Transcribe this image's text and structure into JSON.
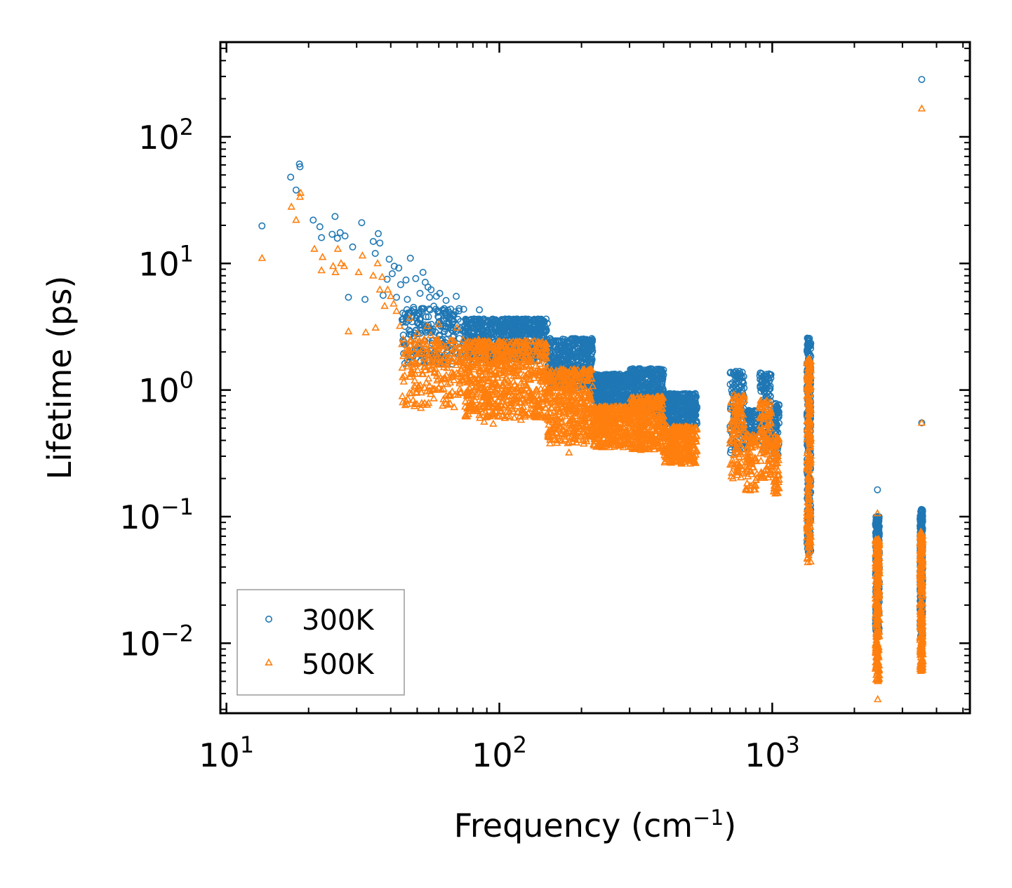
{
  "chart_data": {
    "type": "scatter",
    "title": "",
    "xlabel": {
      "base": "Frequency (cm",
      "sup": "−1",
      "tail": ")"
    },
    "ylabel": "Lifetime (ps)",
    "xscale": "log",
    "yscale": "log",
    "xlim": [
      9.5,
      5300
    ],
    "ylim": [
      0.0028,
      560
    ],
    "legend_position": "lower-left",
    "x_ticks": [
      {
        "value": 10,
        "base": "10",
        "exp": "1"
      },
      {
        "value": 100,
        "base": "10",
        "exp": "2"
      },
      {
        "value": 1000,
        "base": "10",
        "exp": "3"
      }
    ],
    "y_ticks": [
      {
        "value": 0.01,
        "base": "10",
        "exp": "−2"
      },
      {
        "value": 0.1,
        "base": "10",
        "exp": "−1"
      },
      {
        "value": 1,
        "base": "10",
        "exp": "0"
      },
      {
        "value": 10,
        "base": "10",
        "exp": "1"
      },
      {
        "value": 100,
        "base": "10",
        "exp": "2"
      }
    ],
    "series": [
      {
        "name": "300K",
        "marker": "circle",
        "color": "#1f77b4",
        "points": [
          [
            13.5,
            19.8
          ],
          [
            17.2,
            48
          ],
          [
            18.0,
            38
          ],
          [
            18.5,
            61
          ],
          [
            18.6,
            58
          ],
          [
            20.8,
            22
          ],
          [
            22.0,
            19.5
          ],
          [
            22.3,
            16
          ],
          [
            24.4,
            17
          ],
          [
            25.0,
            23.5
          ],
          [
            25.5,
            15.8
          ],
          [
            26.1,
            17.5
          ],
          [
            27.2,
            16.5
          ],
          [
            28.0,
            5.4
          ],
          [
            29.0,
            13.5
          ],
          [
            31.3,
            21
          ],
          [
            32.2,
            5.2
          ],
          [
            34.5,
            14.9
          ],
          [
            35.1,
            12
          ],
          [
            36.0,
            17.2
          ],
          [
            36.5,
            14.5
          ],
          [
            37.5,
            5.6
          ],
          [
            38.8,
            7.5
          ],
          [
            39.5,
            10.8
          ],
          [
            40.5,
            8.3
          ],
          [
            41.2,
            9.5
          ],
          [
            42.0,
            5.4
          ],
          [
            42.8,
            9.2
          ],
          [
            43.5,
            6.8
          ],
          [
            44.0,
            3.6
          ],
          [
            44.8,
            2.3
          ],
          [
            45.5,
            7.4
          ],
          [
            46.0,
            5.2
          ],
          [
            47.2,
            11
          ],
          [
            48.0,
            3.8
          ],
          [
            48.5,
            4.5
          ],
          [
            49.4,
            7.6
          ],
          [
            50.5,
            3.4
          ],
          [
            51.2,
            5.8
          ],
          [
            52.5,
            8.5
          ],
          [
            53.5,
            7.1
          ],
          [
            54.8,
            6.5
          ],
          [
            55.5,
            5.4
          ],
          [
            56.2,
            6.2
          ],
          [
            57.5,
            4.6
          ],
          [
            58.8,
            5.5
          ],
          [
            60.5,
            5.8
          ],
          [
            62.0,
            4.3
          ],
          [
            63.8,
            5.1
          ],
          [
            65.5,
            4.1
          ],
          [
            67.2,
            3.6
          ],
          [
            69.5,
            5.5
          ],
          [
            71.2,
            4.4
          ],
          [
            84.5,
            4.3
          ],
          [
            121.0,
            3.5
          ],
          [
            3530,
            284
          ],
          [
            3530,
            0.55
          ],
          [
            2430,
            0.163
          ]
        ],
        "bands": [
          {
            "x": [
              44.0,
              75.0
            ],
            "lo": 1.6,
            "hi": 4.5,
            "n": 220
          },
          {
            "x": [
              75.0,
              150.0
            ],
            "lo": 1.7,
            "hi": 3.7,
            "n": 700
          },
          {
            "x": [
              150.0,
              220.0
            ],
            "lo": 1.05,
            "hi": 2.6,
            "n": 420
          },
          {
            "x": [
              220.0,
              300.0
            ],
            "lo": 0.78,
            "hi": 1.35,
            "n": 350
          },
          {
            "x": [
              300.0,
              400.0
            ],
            "lo": 0.65,
            "hi": 1.5,
            "n": 380
          },
          {
            "x": [
              400.0,
              530.0
            ],
            "lo": 0.52,
            "hi": 0.95,
            "n": 320
          },
          {
            "x": [
              700.0,
              790.0
            ],
            "lo": 0.32,
            "hi": 1.45,
            "n": 120
          },
          {
            "x": [
              800.0,
              880.0
            ],
            "lo": 0.38,
            "hi": 0.7,
            "n": 80
          },
          {
            "x": [
              900.0,
              990.0
            ],
            "lo": 0.35,
            "hi": 1.4,
            "n": 110
          },
          {
            "x": [
              1010.0,
              1060.0
            ],
            "lo": 0.3,
            "hi": 0.8,
            "n": 60
          },
          {
            "x": [
              1340.0,
              1385.0
            ],
            "lo": 0.05,
            "hi": 2.8,
            "n": 240
          },
          {
            "x": [
              2390.0,
              2470.0
            ],
            "lo": 0.012,
            "hi": 0.105,
            "n": 260
          },
          {
            "x": [
              3480.0,
              3560.0
            ],
            "lo": 0.011,
            "hi": 0.12,
            "n": 260
          }
        ]
      },
      {
        "name": "500K",
        "marker": "triangle",
        "color": "#ff7f0e",
        "points": [
          [
            13.5,
            11
          ],
          [
            17.3,
            28
          ],
          [
            18.0,
            22
          ],
          [
            18.6,
            33.5
          ],
          [
            18.7,
            36
          ],
          [
            21.0,
            13
          ],
          [
            22.3,
            8.8
          ],
          [
            22.5,
            11.2
          ],
          [
            24.6,
            9.5
          ],
          [
            25.1,
            8.5
          ],
          [
            25.6,
            13
          ],
          [
            26.3,
            10
          ],
          [
            27.0,
            9.5
          ],
          [
            28.0,
            2.9
          ],
          [
            30.5,
            8.5
          ],
          [
            31.5,
            11.5
          ],
          [
            32.4,
            2.85
          ],
          [
            34.5,
            8
          ],
          [
            35.2,
            3.1
          ],
          [
            35.8,
            10
          ],
          [
            36.5,
            6.2
          ],
          [
            37.2,
            7.8
          ],
          [
            38.0,
            4.6
          ],
          [
            39.0,
            6.2
          ],
          [
            40.0,
            5.5
          ],
          [
            41.0,
            4.8
          ],
          [
            42.0,
            4.2
          ],
          [
            43.2,
            3.2
          ],
          [
            44.0,
            2.3
          ],
          [
            44.5,
            1.85
          ],
          [
            45.0,
            1.3
          ],
          [
            45.5,
            0.82
          ],
          [
            46.0,
            2.05
          ],
          [
            47.0,
            3.7
          ],
          [
            48.0,
            2.1
          ],
          [
            49.0,
            0.78
          ],
          [
            50.0,
            2.8
          ],
          [
            51.5,
            1.95
          ],
          [
            53.0,
            2.5
          ],
          [
            54.5,
            3.2
          ],
          [
            56.0,
            2.7
          ],
          [
            58.0,
            1.4
          ],
          [
            60.0,
            3.3
          ],
          [
            62.0,
            0.75
          ],
          [
            64.0,
            1.6
          ],
          [
            66.0,
            0.92
          ],
          [
            70.0,
            3.1
          ],
          [
            73.0,
            1.25
          ],
          [
            84.0,
            2.5
          ],
          [
            88.0,
            0.56
          ],
          [
            95.0,
            0.54
          ],
          [
            105.0,
            0.6
          ],
          [
            120.0,
            0.58
          ],
          [
            180.0,
            0.32
          ],
          [
            3530,
            167
          ],
          [
            3530,
            0.55
          ],
          [
            2430,
            0.106
          ],
          [
            2435,
            0.0036
          ]
        ],
        "bands": [
          {
            "x": [
              44.0,
              75.0
            ],
            "lo": 0.72,
            "hi": 2.6,
            "n": 220
          },
          {
            "x": [
              75.0,
              150.0
            ],
            "lo": 0.6,
            "hi": 2.5,
            "n": 700
          },
          {
            "x": [
              150.0,
              220.0
            ],
            "lo": 0.37,
            "hi": 1.5,
            "n": 420
          },
          {
            "x": [
              220.0,
              300.0
            ],
            "lo": 0.35,
            "hi": 0.75,
            "n": 350
          },
          {
            "x": [
              300.0,
              400.0
            ],
            "lo": 0.33,
            "hi": 0.9,
            "n": 380
          },
          {
            "x": [
              400.0,
              530.0
            ],
            "lo": 0.26,
            "hi": 0.52,
            "n": 320
          },
          {
            "x": [
              700.0,
              790.0
            ],
            "lo": 0.2,
            "hi": 0.95,
            "n": 120
          },
          {
            "x": [
              800.0,
              880.0
            ],
            "lo": 0.16,
            "hi": 0.45,
            "n": 80
          },
          {
            "x": [
              900.0,
              990.0
            ],
            "lo": 0.2,
            "hi": 0.85,
            "n": 110
          },
          {
            "x": [
              1010.0,
              1060.0
            ],
            "lo": 0.15,
            "hi": 0.45,
            "n": 60
          },
          {
            "x": [
              1340.0,
              1385.0
            ],
            "lo": 0.042,
            "hi": 1.9,
            "n": 240
          },
          {
            "x": [
              2390.0,
              2470.0
            ],
            "lo": 0.005,
            "hi": 0.07,
            "n": 260
          },
          {
            "x": [
              3480.0,
              3560.0
            ],
            "lo": 0.006,
            "hi": 0.08,
            "n": 260
          }
        ]
      }
    ]
  }
}
